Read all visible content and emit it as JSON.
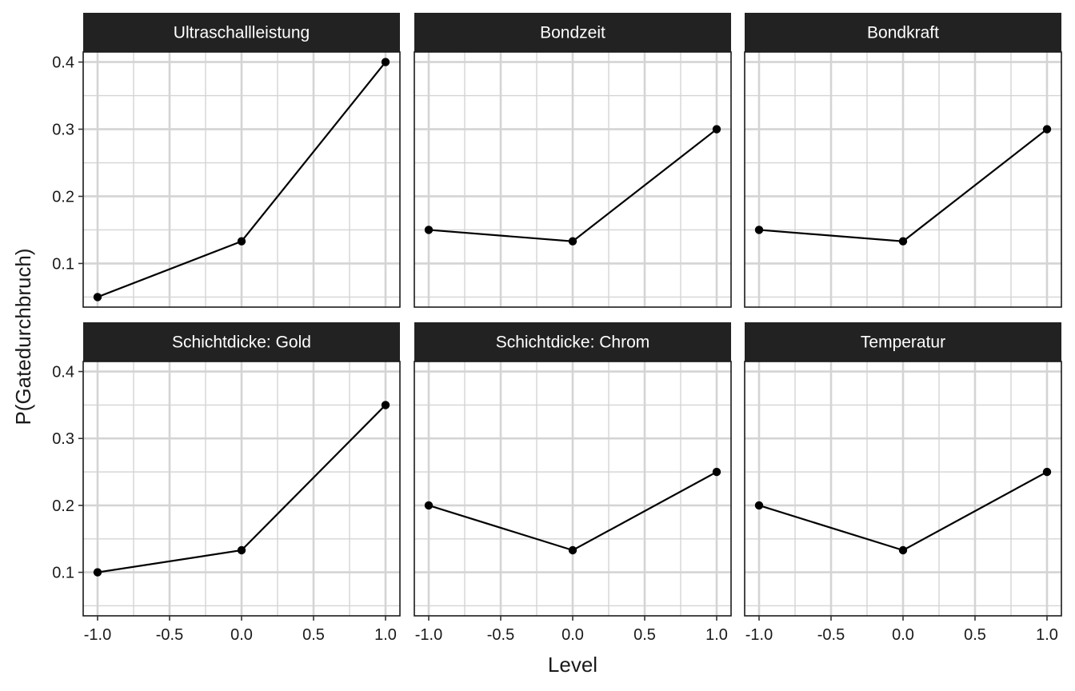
{
  "chart_data": {
    "type": "line",
    "facet_layout": "3 columns x 2 rows",
    "xlabel": "Level",
    "ylabel": "P(Gatedurchbruch)",
    "x": [
      -1.0,
      0.0,
      1.0
    ],
    "xlim": [
      -1.1,
      1.1
    ],
    "ylim": [
      0.035,
      0.415
    ],
    "x_ticks": [
      -1.0,
      -0.5,
      0.0,
      0.5,
      1.0
    ],
    "x_tick_labels": [
      "-1.0",
      "-0.5",
      "0.0",
      "0.5",
      "1.0"
    ],
    "y_ticks": [
      0.1,
      0.2,
      0.3,
      0.4
    ],
    "y_tick_labels": [
      "0.1",
      "0.2",
      "0.3",
      "0.4"
    ],
    "grid": true,
    "colors": {
      "line": "#000000",
      "point": "#000000",
      "strip_background": "#222222",
      "strip_text": "#ffffff",
      "grid": "#d4d4d4",
      "panel_border": "#1a1a1a"
    },
    "panels": [
      {
        "title": "Ultraschallleistung",
        "values": [
          0.05,
          0.133,
          0.4
        ]
      },
      {
        "title": "Bondzeit",
        "values": [
          0.15,
          0.133,
          0.3
        ]
      },
      {
        "title": "Bondkraft",
        "values": [
          0.15,
          0.133,
          0.3
        ]
      },
      {
        "title": "Schichtdicke: Gold",
        "values": [
          0.1,
          0.133,
          0.35
        ]
      },
      {
        "title": "Schichtdicke: Chrom",
        "values": [
          0.2,
          0.133,
          0.25
        ]
      },
      {
        "title": "Temperatur",
        "values": [
          0.2,
          0.133,
          0.25
        ]
      }
    ]
  }
}
